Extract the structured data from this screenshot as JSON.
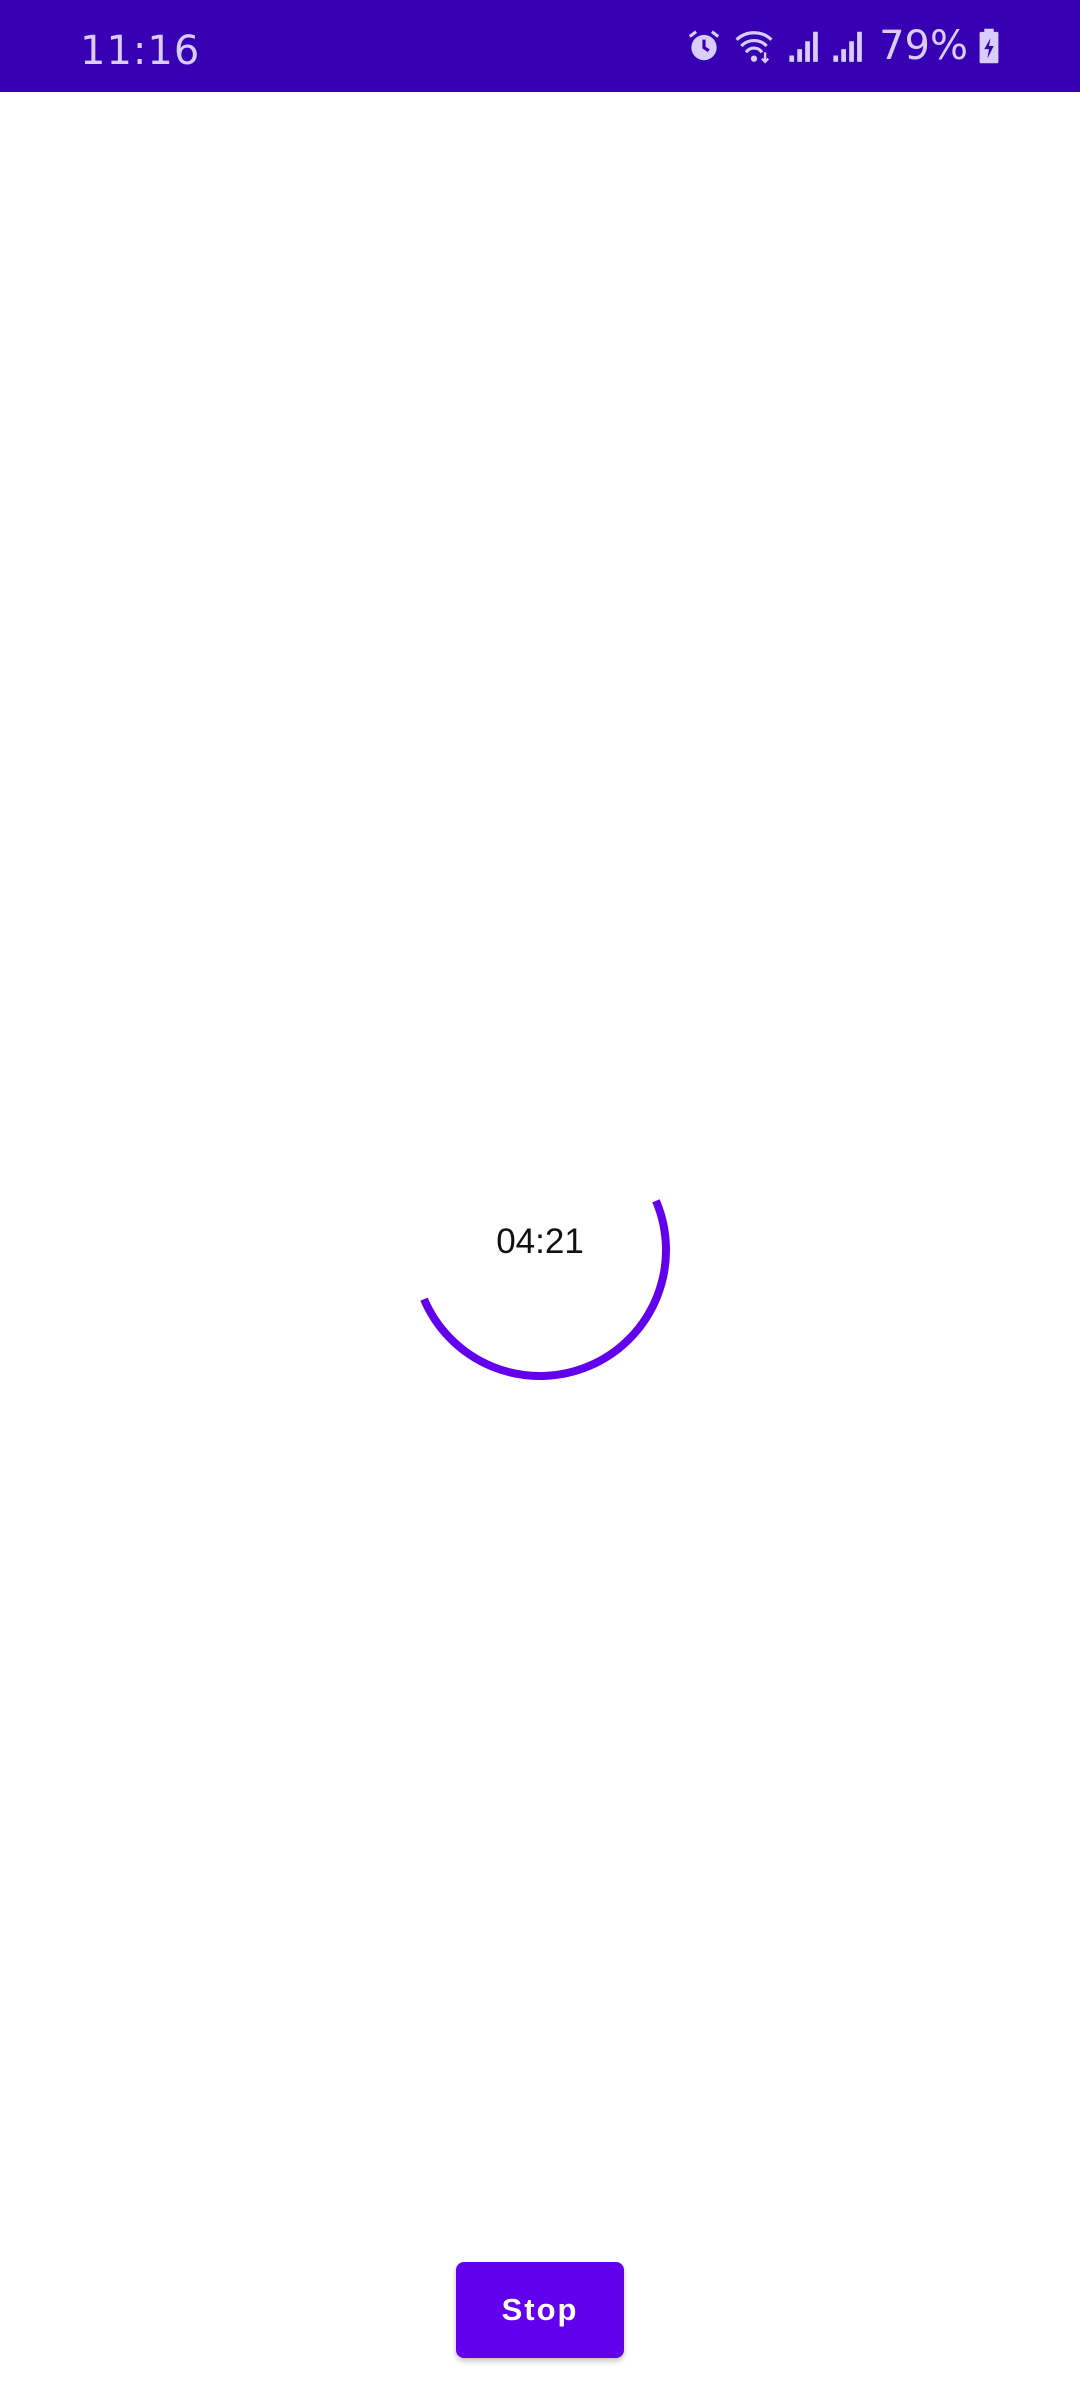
{
  "status_bar": {
    "time": "11:16",
    "battery_percent": "79%",
    "icons": [
      "alarm-icon",
      "wifi-icon",
      "signal-icon",
      "signal-icon",
      "battery-charging-icon"
    ],
    "background_color": "#3700b3"
  },
  "timer": {
    "display": "04:21",
    "progress_fraction": 0.5,
    "arc_color": "#6200ee"
  },
  "controls": {
    "stop_label": "Stop",
    "button_color": "#6200ee"
  }
}
